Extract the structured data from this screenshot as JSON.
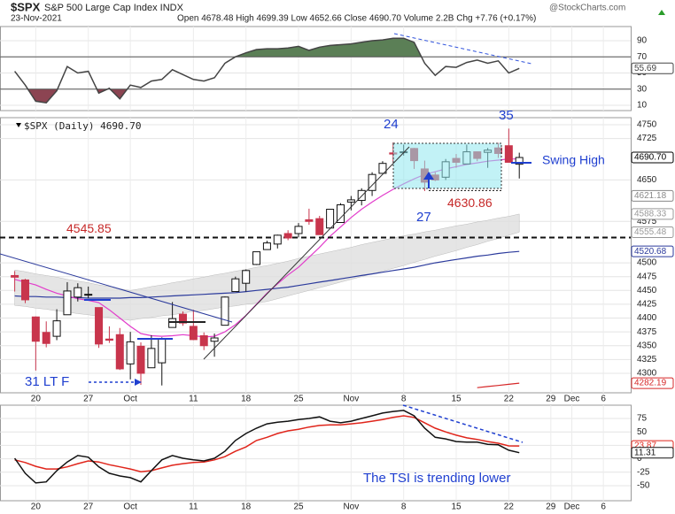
{
  "header": {
    "symbol": "$SPX",
    "name": "S&P 500 Large Cap Index INDX",
    "date": "23-Nov-2021",
    "quote": "Open 4678.48 High 4699.39 Low 4652.66 Close 4690.70 Volume 2.2B Chg +7.76 (+0.17%)",
    "source": "@StockCharts.com"
  },
  "chart_data": [
    {
      "type": "line",
      "xlim": [
        -1.4,
        58.6
      ],
      "ylim": [
        3.4,
        107.5
      ],
      "yticks": [
        10,
        30,
        50,
        70,
        90
      ],
      "grid": true,
      "show_xtick_labels": false,
      "xticks": [
        {
          "value": 2,
          "label": "20"
        },
        {
          "value": 7,
          "label": "27"
        },
        {
          "value": 11,
          "label": "Oct"
        },
        {
          "value": 17,
          "label": "11"
        },
        {
          "value": 22,
          "label": "18"
        },
        {
          "value": 27,
          "label": "25"
        },
        {
          "value": 32,
          "label": "Nov"
        },
        {
          "value": 37,
          "label": "8"
        },
        {
          "value": 42,
          "label": "15"
        },
        {
          "value": 47,
          "label": "22"
        },
        {
          "value": 51,
          "label": "29"
        },
        {
          "value": 53,
          "label": "Dec"
        },
        {
          "value": 56,
          "label": "6"
        }
      ],
      "overbought": 70,
      "oversold": 30,
      "overbought_color": "#5b7f56",
      "oversold_color": "#8c4452",
      "series": [
        {
          "color": "#444444",
          "values": [
            52,
            35,
            15,
            13,
            28,
            58,
            50,
            52,
            25,
            31,
            18,
            35,
            32,
            40,
            42,
            54,
            48,
            42,
            40,
            44,
            62,
            70,
            75,
            79,
            80,
            80,
            81,
            83,
            78,
            82,
            84,
            85,
            86,
            88,
            90,
            91,
            93,
            93,
            88,
            62,
            47,
            58,
            57,
            63,
            66,
            62,
            65,
            50,
            55.69
          ]
        }
      ],
      "last_values": [
        {
          "value": 55.69,
          "label": "55.69",
          "color": "#444444"
        }
      ]
    },
    {
      "type": "candlestick",
      "title": "$SPX (Daily) 4690.70",
      "xlim": [
        -1.4,
        58.6
      ],
      "ylim": [
        4264.7,
        4762.8
      ],
      "grid": true,
      "show_xtick_labels": true,
      "xticks": [
        {
          "value": 2,
          "label": "20"
        },
        {
          "value": 7,
          "label": "27"
        },
        {
          "value": 11,
          "label": "Oct"
        },
        {
          "value": 17,
          "label": "11"
        },
        {
          "value": 22,
          "label": "18"
        },
        {
          "value": 27,
          "label": "25"
        },
        {
          "value": 32,
          "label": "Nov"
        },
        {
          "value": 37,
          "label": "8"
        },
        {
          "value": 42,
          "label": "15"
        },
        {
          "value": 47,
          "label": "22"
        },
        {
          "value": 51,
          "label": "29"
        },
        {
          "value": 53,
          "label": "Dec"
        },
        {
          "value": 56,
          "label": "6"
        }
      ],
      "yticks": [
        4300,
        4325,
        4350,
        4375,
        4400,
        4425,
        4450,
        4475,
        4500,
        4575,
        4650,
        4725,
        4750
      ],
      "up_color": "#ffffff",
      "down_color": "#c8354c",
      "open": [
        4477,
        4469,
        4402,
        4374,
        4367,
        4406,
        4438,
        4442,
        4419,
        4362,
        4370,
        4317,
        4349,
        4310,
        4319,
        4383,
        4407,
        4385,
        4368,
        4358,
        4387,
        4448,
        4463,
        4497,
        4524,
        4534,
        4553,
        4553,
        4578,
        4580,
        4563,
        4573,
        4610,
        4613,
        4631,
        4662,
        4699,
        4701,
        4707,
        4670,
        4659,
        4655,
        4689,
        4679,
        4701,
        4700,
        4708,
        4712,
        4678.48
      ],
      "high": [
        4485,
        4471,
        4403,
        4394,
        4416,
        4465,
        4463,
        4457,
        4419,
        4385,
        4382,
        4375,
        4356,
        4369,
        4365,
        4429,
        4412,
        4415,
        4374,
        4372,
        4439,
        4475,
        4488,
        4520,
        4540,
        4551,
        4559,
        4572,
        4598,
        4585,
        4597,
        4608,
        4621,
        4635,
        4664,
        4684,
        4718,
        4714,
        4708,
        4685,
        4664,
        4688,
        4697,
        4714,
        4701,
        4708,
        4717,
        4743,
        4699.39
      ],
      "low": [
        4448,
        4427,
        4305,
        4347,
        4360,
        4406,
        4430,
        4436,
        4346,
        4355,
        4306,
        4289,
        4279,
        4310,
        4278,
        4383,
        4386,
        4360,
        4342,
        4330,
        4387,
        4448,
        4448,
        4496,
        4524,
        4526,
        4541,
        4546,
        4569,
        4551,
        4563,
        4573,
        4595,
        4604,
        4621,
        4662,
        4681,
        4694,
        4670,
        4630,
        4648,
        4650,
        4672,
        4679,
        4684,
        4672,
        4690,
        4682,
        4652.66
      ],
      "close": [
        4474,
        4433,
        4358,
        4354,
        4395,
        4449,
        4455,
        4443,
        4353,
        4360,
        4308,
        4357,
        4300,
        4345,
        4363,
        4399,
        4391,
        4361,
        4350,
        4364,
        4438,
        4471,
        4486,
        4520,
        4536,
        4550,
        4545,
        4566,
        4575,
        4551,
        4597,
        4605,
        4614,
        4631,
        4660,
        4680,
        4697,
        4701,
        4685,
        4646,
        4650,
        4683,
        4682,
        4701,
        4689,
        4704,
        4698,
        4682,
        4690.7
      ],
      "band": {
        "color": "#dedede",
        "upper": [
          4487,
          4484,
          4480,
          4477,
          4474,
          4470,
          4467,
          4464,
          4460,
          4457,
          4453,
          4450,
          4453,
          4457,
          4460,
          4464,
          4467,
          4471,
          4474,
          4478,
          4481,
          4485,
          4488,
          4492,
          4495,
          4499,
          4503,
          4508,
          4512,
          4516,
          4520,
          4524,
          4528,
          4533,
          4537,
          4541,
          4545,
          4549,
          4552,
          4556,
          4559,
          4563,
          4567,
          4570,
          4574,
          4577,
          4581,
          4584,
          4588.33
        ],
        "lower": [
          4423,
          4421,
          4418,
          4416,
          4413,
          4411,
          4408,
          4406,
          4403,
          4401,
          4398,
          4396,
          4399,
          4401,
          4404,
          4406,
          4409,
          4412,
          4414,
          4417,
          4420,
          4422,
          4425,
          4427,
          4430,
          4435,
          4440,
          4445,
          4450,
          4455,
          4460,
          4465,
          4470,
          4475,
          4480,
          4485,
          4490,
          4495,
          4501,
          4506,
          4512,
          4517,
          4522,
          4528,
          4533,
          4539,
          4544,
          4550,
          4555.48
        ]
      },
      "overlays": [
        {
          "color": "#2b3a9c",
          "values": [
            4440,
            4439,
            4439,
            4438,
            4438,
            4437,
            4437,
            4436,
            4436,
            4436,
            4436,
            4437,
            4437,
            4438,
            4439,
            4440,
            4441,
            4442,
            4443,
            4444,
            4445,
            4446,
            4448,
            4450,
            4452,
            4454,
            4456,
            4459,
            4462,
            4465,
            4468,
            4471,
            4474,
            4477,
            4480,
            4483,
            4486,
            4489,
            4492,
            4496,
            4500,
            4503,
            4506,
            4509,
            4512,
            4514,
            4517,
            4519,
            4520.68
          ]
        },
        {
          "color": "#e23ccb",
          "values": [
            4470,
            4465,
            4460,
            4452,
            4445,
            4440,
            4435,
            4432,
            4428,
            4415,
            4400,
            4385,
            4372,
            4368,
            4367,
            4368,
            4370,
            4368,
            4366,
            4367,
            4375,
            4388,
            4405,
            4425,
            4445,
            4462,
            4478,
            4492,
            4510,
            4528,
            4548,
            4565,
            4582,
            4597,
            4610,
            4622,
            4633,
            4643,
            4652,
            4660,
            4665,
            4670,
            4674,
            4678,
            4681,
            4684,
            4686,
            4688,
            4688
          ]
        },
        {
          "color": "#d62728",
          "values": [
            null,
            null,
            null,
            null,
            null,
            null,
            null,
            null,
            null,
            null,
            null,
            null,
            null,
            null,
            null,
            null,
            null,
            null,
            null,
            null,
            null,
            null,
            null,
            null,
            null,
            null,
            null,
            null,
            null,
            null,
            null,
            null,
            null,
            null,
            null,
            null,
            null,
            null,
            null,
            null,
            null,
            null,
            null,
            null,
            4274,
            4276,
            4278,
            4280,
            4282.19
          ]
        }
      ],
      "levels": [
        {
          "value": 4545.85,
          "label": "4545.85",
          "color": "#c62828"
        },
        {
          "value": 4630.86,
          "label": "4630.86",
          "color": "#c62828"
        }
      ],
      "annotations": [
        "24",
        "35",
        "27",
        "Swing High",
        "31 LT F"
      ],
      "last_values": [
        {
          "value": 4690.7,
          "label": "4690.70",
          "color": "#000000"
        },
        {
          "value": 4621.18,
          "label": "4621.18",
          "color": "#888888"
        },
        {
          "value": 4588.33,
          "label": "4588.33",
          "color": "#999999"
        },
        {
          "value": 4555.48,
          "label": "4555.48",
          "color": "#999999"
        },
        {
          "value": 4520.68,
          "label": "4520.68",
          "color": "#2b3a9c"
        },
        {
          "value": 4282.19,
          "label": "4282.19",
          "color": "#d62728"
        }
      ]
    },
    {
      "type": "line",
      "xlim": [
        -1.4,
        58.6
      ],
      "ylim": [
        -78,
        99.7
      ],
      "yticks": [
        -50,
        -25,
        0,
        25,
        50,
        75
      ],
      "grid": true,
      "show_xtick_labels": true,
      "xticks": [
        {
          "value": 2,
          "label": "20"
        },
        {
          "value": 7,
          "label": "27"
        },
        {
          "value": 11,
          "label": "Oct"
        },
        {
          "value": 17,
          "label": "11"
        },
        {
          "value": 22,
          "label": "18"
        },
        {
          "value": 27,
          "label": "25"
        },
        {
          "value": 32,
          "label": "Nov"
        },
        {
          "value": 37,
          "label": "8"
        },
        {
          "value": 42,
          "label": "15"
        },
        {
          "value": 47,
          "label": "22"
        },
        {
          "value": 51,
          "label": "29"
        },
        {
          "value": 53,
          "label": "Dec"
        },
        {
          "value": 56,
          "label": "6"
        }
      ],
      "annotation": "The TSI is trending lower",
      "series": [
        {
          "color": "#e0251b",
          "values": [
            -2,
            -7,
            -14,
            -19,
            -19,
            -15,
            -9,
            -4,
            -6,
            -11,
            -15,
            -19,
            -24,
            -22,
            -17,
            -12,
            -9,
            -7,
            -6,
            -2,
            4,
            14,
            22,
            34,
            40,
            47,
            52,
            55,
            59,
            62,
            63,
            63,
            65,
            67,
            70,
            73,
            77,
            80,
            77,
            67,
            57,
            50,
            44,
            39,
            36,
            32,
            29,
            24,
            23.87
          ]
        },
        {
          "color": "#111111",
          "values": [
            1,
            -27,
            -45,
            -43,
            -22,
            -6,
            6,
            3,
            -15,
            -27,
            -32,
            -35,
            -43,
            -22,
            -2,
            6,
            1,
            -2,
            -4,
            1,
            14,
            34,
            47,
            57,
            65,
            68,
            70,
            73,
            75,
            78,
            70,
            67,
            70,
            75,
            80,
            85,
            88,
            90,
            80,
            57,
            40,
            37,
            32,
            31,
            31,
            27,
            26,
            16,
            11.31
          ]
        }
      ],
      "last_values": [
        {
          "value": 23.87,
          "label": "23.87",
          "color": "#e0251b"
        },
        {
          "value": 11.31,
          "label": "11.31",
          "color": "#111111"
        }
      ]
    }
  ]
}
